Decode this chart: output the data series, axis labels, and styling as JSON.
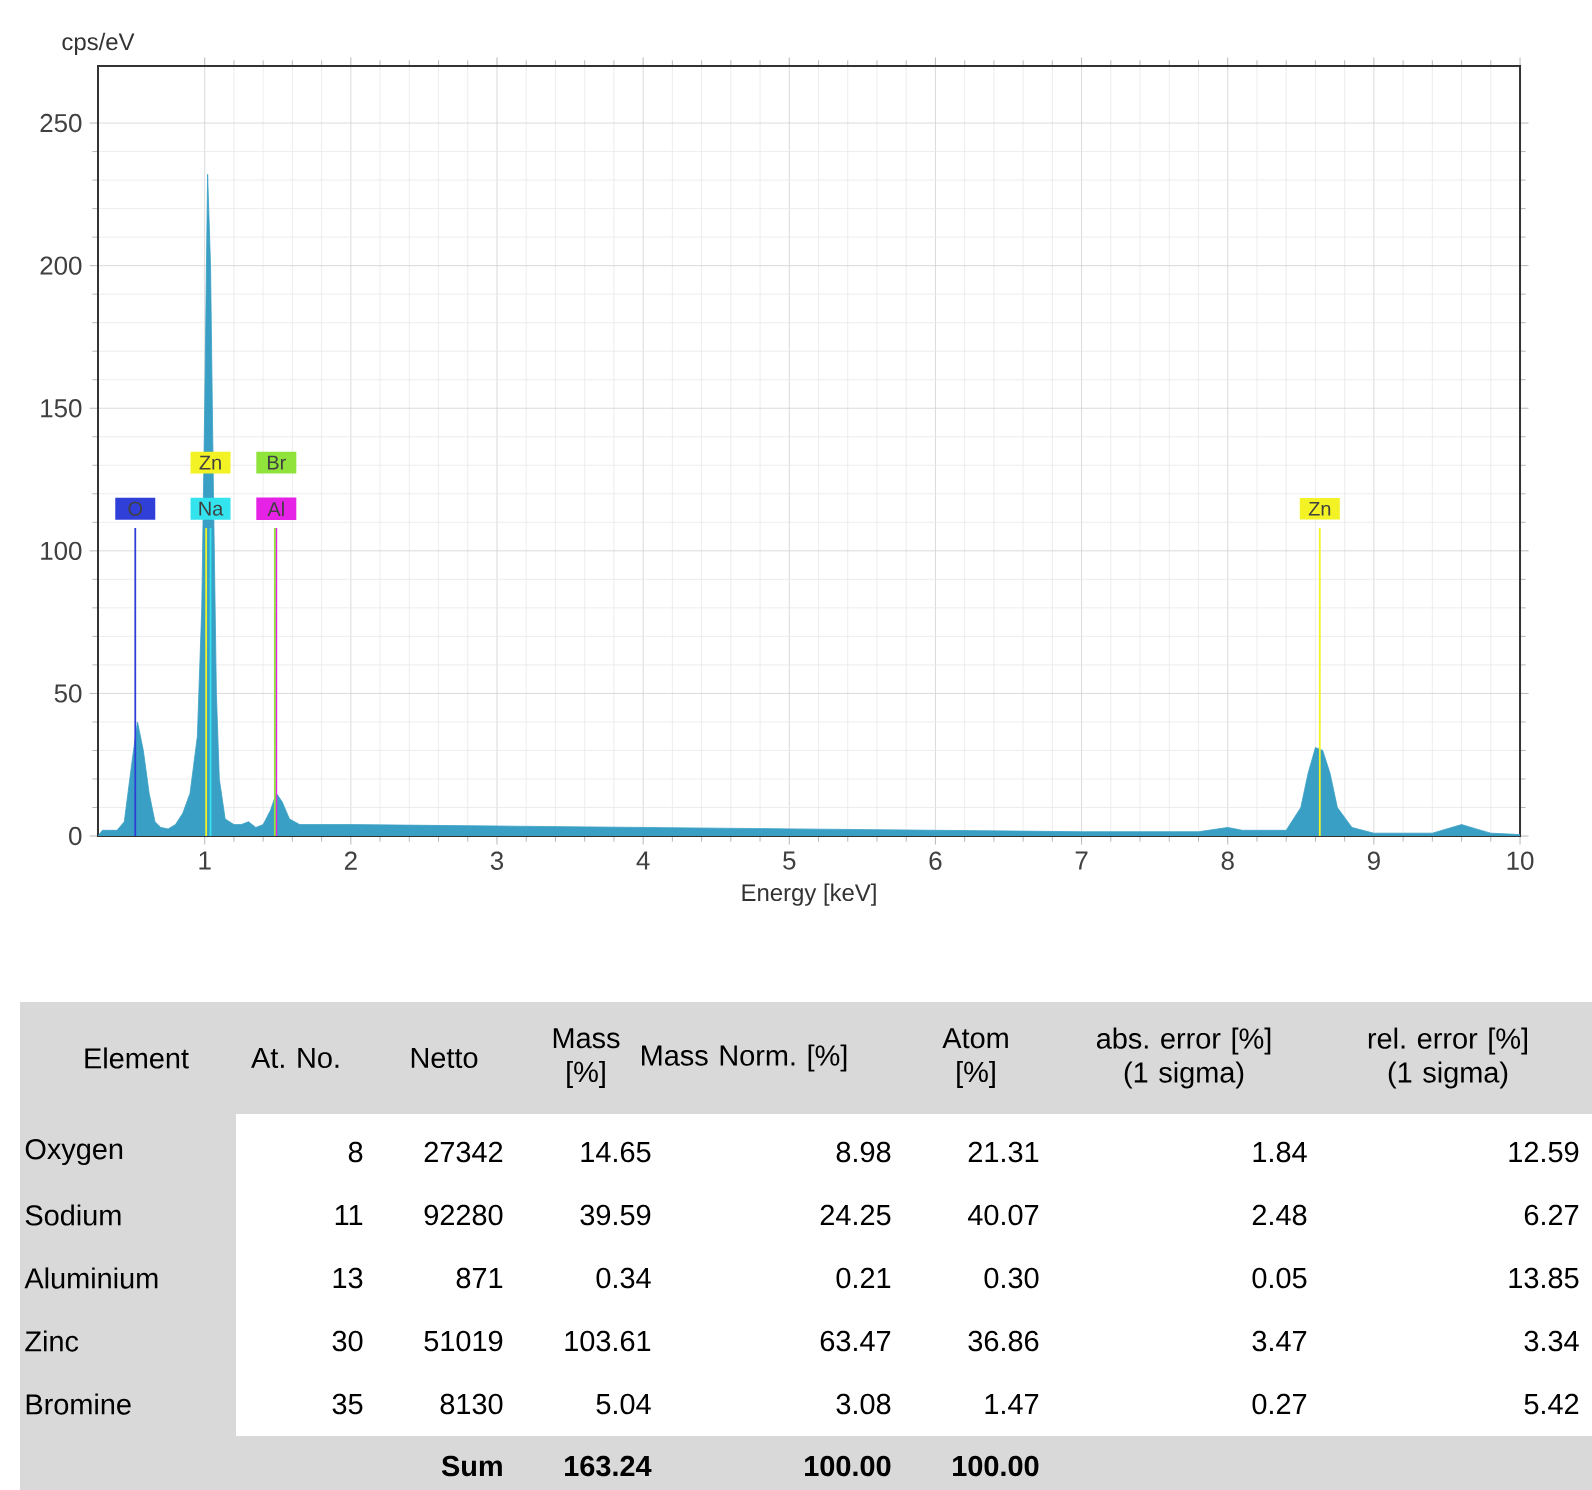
{
  "chart_data": [
    {
      "type": "area",
      "xlabel": "Energy [keV]",
      "ylabel": "cps/eV",
      "color": "#3a9fc4",
      "x": [
        0.27,
        0.3,
        0.4,
        0.45,
        0.5,
        0.54,
        0.58,
        0.62,
        0.66,
        0.7,
        0.75,
        0.8,
        0.85,
        0.9,
        0.95,
        0.98,
        1.0,
        1.02,
        1.04,
        1.06,
        1.08,
        1.1,
        1.14,
        1.2,
        1.25,
        1.3,
        1.35,
        1.4,
        1.45,
        1.49,
        1.53,
        1.58,
        1.65,
        1.8,
        2,
        3,
        4,
        5,
        6,
        7,
        7.8,
        8.0,
        8.1,
        8.4,
        8.5,
        8.55,
        8.6,
        8.65,
        8.7,
        8.75,
        8.85,
        9.0,
        9.4,
        9.5,
        9.6,
        9.7,
        9.8,
        10
      ],
      "values": [
        0,
        2,
        2,
        5,
        25,
        40,
        30,
        15,
        5,
        3,
        2.5,
        4,
        8,
        15,
        35,
        80,
        150,
        232,
        200,
        120,
        50,
        20,
        6,
        4,
        4,
        5,
        3,
        4,
        9,
        15,
        12,
        6,
        4,
        4,
        4,
        3.5,
        3,
        2.5,
        2,
        1.5,
        1.5,
        3,
        2,
        2,
        10,
        22,
        31,
        30,
        22,
        10,
        3,
        1,
        1,
        2.5,
        4,
        2.5,
        1,
        0.5
      ],
      "xlim": [
        0.27,
        10
      ],
      "ylim": [
        0,
        270
      ],
      "xticks": [
        1,
        2,
        3,
        4,
        5,
        6,
        7,
        8,
        9,
        10
      ],
      "yticks": [
        0,
        50,
        100,
        150,
        200,
        250
      ],
      "grid": true,
      "ref_lines": [
        {
          "axis": "x",
          "value": 0.525,
          "label": "O",
          "color": "#2f3fd8"
        },
        {
          "axis": "x",
          "value": 1.04,
          "label": "Na",
          "color": "#33e3ee"
        },
        {
          "axis": "x",
          "value": 1.01,
          "label": "Zn",
          "color": "#f2f224"
        },
        {
          "axis": "x",
          "value": 1.49,
          "label": "Al",
          "color": "#e622e6"
        },
        {
          "axis": "x",
          "value": 1.48,
          "label": "Br",
          "color": "#8fe33a"
        },
        {
          "axis": "x",
          "value": 8.63,
          "label": "Zn",
          "color": "#f2f224"
        }
      ]
    },
    {
      "type": "other",
      "annotations": [
        "Element",
        "At. No.",
        "Netto",
        "Mass [%]",
        "Mass Norm. [%]",
        "Atom [%]",
        "abs. error [%] (1 sigma)",
        "rel. error [%] (1 sigma)",
        "Oxygen",
        "8",
        "27342",
        "14.65",
        "8.98",
        "21.31",
        "1.84",
        "12.59",
        "Sodium",
        "11",
        "92280",
        "39.59",
        "24.25",
        "40.07",
        "2.48",
        "6.27",
        "Aluminium",
        "13",
        "871",
        "0.34",
        "0.21",
        "0.30",
        "0.05",
        "13.85",
        "Zinc",
        "30",
        "51019",
        "103.61",
        "63.47",
        "36.86",
        "3.47",
        "3.34",
        "Bromine",
        "35",
        "8130",
        "5.04",
        "3.08",
        "1.47",
        "0.27",
        "5.42",
        "Sum",
        "163.24",
        "100.00",
        "100.00"
      ]
    }
  ]
}
